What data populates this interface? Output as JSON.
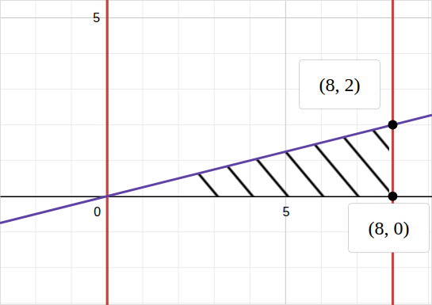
{
  "chart_data": {
    "type": "line",
    "xlim": [
      -3,
      9.1
    ],
    "ylim": [
      -3.05,
      5.5
    ],
    "xticks": [
      0,
      5
    ],
    "yticks": [
      5
    ],
    "grid": true,
    "series": [
      {
        "type": "line",
        "color": "#c74440",
        "line_style": "solid",
        "x": [
          0,
          0
        ],
        "values": [
          -3.05,
          5.5
        ]
      },
      {
        "type": "line",
        "color": "#c74440",
        "line_style": "solid",
        "x": [
          8,
          8
        ],
        "values": [
          -3.05,
          5.5
        ]
      },
      {
        "type": "line",
        "color": "#6042a6",
        "line_style": "solid",
        "x": [
          -3,
          9.1
        ],
        "values": [
          -0.75,
          2.275
        ]
      },
      {
        "type": "scatter",
        "color": "#000000",
        "marker": "circle",
        "x": [
          8,
          8
        ],
        "values": [
          2,
          0
        ],
        "data_labels": true,
        "value_labels": [
          "(8, 2)",
          "(8, 0)"
        ]
      }
    ],
    "shaded": {
      "color": "#000000",
      "x": [
        1.9,
        7.9,
        7.9,
        2.6
      ],
      "values": [
        0.475,
        1.975,
        0,
        0
      ]
    }
  }
}
